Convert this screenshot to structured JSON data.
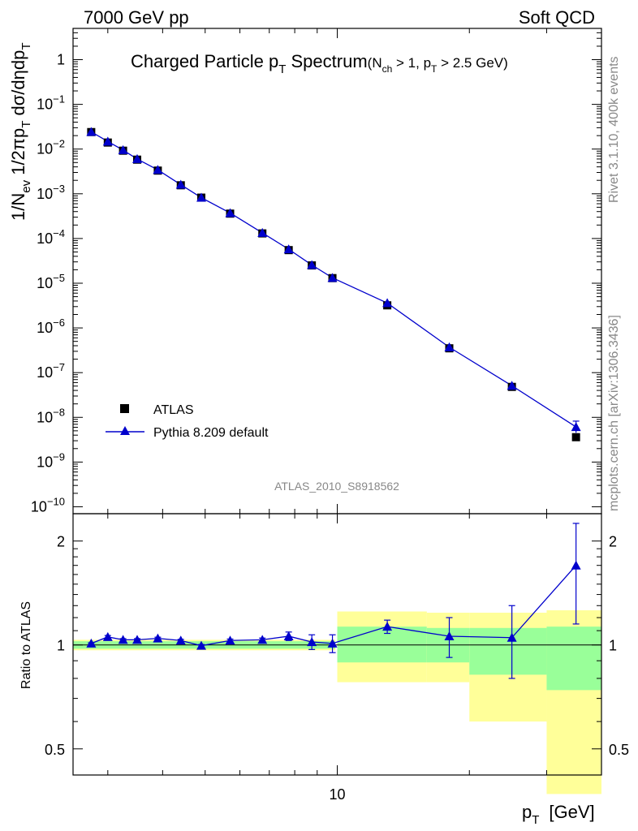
{
  "header": {
    "left": "7000 GeV pp",
    "right": "Soft QCD"
  },
  "side_labels": {
    "rivet": "Rivet 3.1.10,  400k events",
    "mcplots": "mcplots.cern.ch [arXiv:1306.3436]"
  },
  "watermark": "ATLAS_2010_S8918562",
  "colors": {
    "mc": "#0000cc",
    "data": "#000000",
    "band_green": "#99ff99",
    "band_yellow": "#ffff99"
  },
  "chart_data": [
    {
      "type": "scatter",
      "title": {
        "main": "Charged Particle p",
        "main_sub": "T",
        "main_tail": " Spectrum",
        "cond_open": "(N",
        "cond_sub1": "ch",
        "cond_mid": " > 1, p",
        "cond_sub2": "T",
        "cond_tail": " > 2.5 GeV)"
      },
      "ylabel": {
        "p1": "1/N",
        "p1_sub": "ev",
        "p2": " 1/2πp",
        "p2_sub": "T",
        "p3": " dσ/dηdp",
        "p3_sub": "T"
      },
      "x_scale": "log",
      "y_scale": "log",
      "xlim": [
        2.5,
        40
      ],
      "ylim": [
        7e-11,
        5
      ],
      "yticks": [
        {
          "v": 1,
          "label": "1",
          "sup": ""
        },
        {
          "v": 0.1,
          "label": "10",
          "sup": "−1"
        },
        {
          "v": 0.01,
          "label": "10",
          "sup": "−2"
        },
        {
          "v": 0.001,
          "label": "10",
          "sup": "−3"
        },
        {
          "v": 0.0001,
          "label": "10",
          "sup": "−4"
        },
        {
          "v": 1e-05,
          "label": "10",
          "sup": "−5"
        },
        {
          "v": 1e-06,
          "label": "10",
          "sup": "−6"
        },
        {
          "v": 1e-07,
          "label": "10",
          "sup": "−7"
        },
        {
          "v": 1e-08,
          "label": "10",
          "sup": "−8"
        },
        {
          "v": 1e-09,
          "label": "10",
          "sup": "−9"
        },
        {
          "v": 1e-10,
          "label": "10",
          "sup": "−10"
        }
      ],
      "legend_position": "lower-left",
      "series": [
        {
          "name": "ATLAS",
          "marker": "square",
          "x": [
            2.75,
            3.0,
            3.25,
            3.5,
            3.9,
            4.4,
            4.9,
            5.7,
            6.75,
            7.75,
            8.75,
            9.75,
            13.0,
            18.0,
            25.0,
            35.0
          ],
          "y": [
            0.024,
            0.014,
            0.0092,
            0.0058,
            0.0033,
            0.00155,
            0.00082,
            0.00036,
            0.00013,
            5.5e-05,
            2.5e-05,
            1.3e-05,
            3.2e-06,
            3.5e-07,
            4.8e-08,
            3.6e-09
          ]
        },
        {
          "name": "Pythia 8.209 default",
          "marker": "triangle",
          "x": [
            2.75,
            3.0,
            3.25,
            3.5,
            3.9,
            4.4,
            4.9,
            5.7,
            6.75,
            7.75,
            8.75,
            9.75,
            13.0,
            18.0,
            25.0,
            35.0
          ],
          "y": [
            0.0243,
            0.0148,
            0.0095,
            0.006,
            0.00343,
            0.0016,
            0.00082,
            0.000372,
            0.000134,
            5.75e-05,
            2.56e-05,
            1.32e-05,
            3.6e-06,
            3.7e-07,
            5.1e-08,
            6.1e-09
          ]
        }
      ]
    },
    {
      "type": "scatter",
      "ylabel": "Ratio to ATLAS",
      "xlabel": "p",
      "xlabel_sub": "T",
      "xlabel_unit": "[GeV]",
      "x_scale": "log",
      "y_scale": "log",
      "xlim": [
        2.5,
        40
      ],
      "ylim": [
        0.42,
        2.4
      ],
      "xtick_labels": [
        {
          "v": 10,
          "label": "10"
        }
      ],
      "yticks": [
        {
          "v": 0.5,
          "label": "0.5"
        },
        {
          "v": 1,
          "label": "1"
        },
        {
          "v": 2,
          "label": "2"
        }
      ],
      "reference_line": 1,
      "bands": [
        {
          "x0": 2.5,
          "x1": 9.9,
          "green": [
            0.975,
            1.025
          ],
          "yellow": [
            0.965,
            1.035
          ]
        },
        {
          "x0": 10,
          "x1": 16,
          "green": [
            0.89,
            1.13
          ],
          "yellow": [
            0.78,
            1.25
          ]
        },
        {
          "x0": 16,
          "x1": 20,
          "green": [
            0.89,
            1.12
          ],
          "yellow": [
            0.78,
            1.24
          ]
        },
        {
          "x0": 20,
          "x1": 30,
          "green": [
            0.82,
            1.12
          ],
          "yellow": [
            0.6,
            1.24
          ]
        },
        {
          "x0": 30,
          "x1": 40,
          "green": [
            0.74,
            1.13
          ],
          "yellow": [
            0.37,
            1.26
          ]
        }
      ],
      "series": [
        {
          "name": "Pythia 8.209 default",
          "x": [
            2.75,
            3.0,
            3.25,
            3.5,
            3.9,
            4.4,
            4.9,
            5.7,
            6.75,
            7.75,
            8.75,
            9.75,
            13.0,
            18.0,
            25.0,
            35.0
          ],
          "y": [
            1.01,
            1.055,
            1.035,
            1.035,
            1.045,
            1.03,
            0.995,
            1.03,
            1.035,
            1.06,
            1.02,
            1.01,
            1.13,
            1.06,
            1.05,
            1.7
          ],
          "yerr": [
            0.005,
            0.01,
            0.008,
            0.008,
            0.008,
            0.008,
            0.008,
            0.01,
            0.012,
            0.03,
            0.05,
            0.06,
            0.05,
            0.14,
            0.25,
            0.55
          ]
        }
      ]
    }
  ]
}
